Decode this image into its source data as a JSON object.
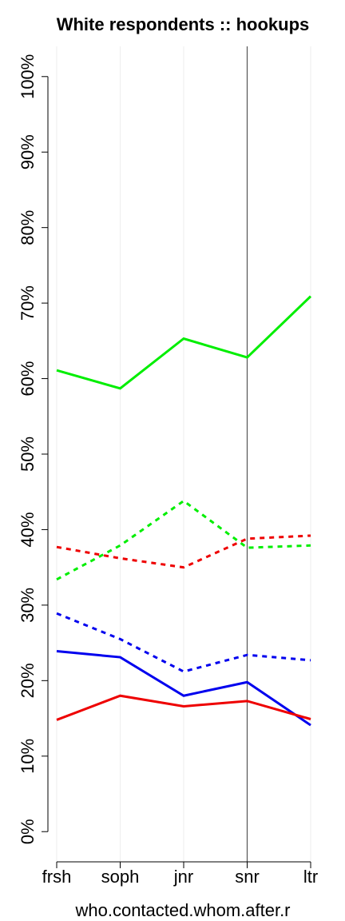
{
  "chart_data": {
    "type": "line",
    "title": "White respondents :: hookups",
    "x_label": "who.contacted.whom.after.r",
    "categories": [
      "frsh",
      "soph",
      "jnr",
      "snr",
      "ltr"
    ],
    "series": [
      {
        "color": "#00ee00",
        "dashed": false,
        "values": [
          61.1,
          58.7,
          65.3,
          62.8,
          70.9
        ]
      },
      {
        "color": "#00ee00",
        "dashed": true,
        "values": [
          33.4,
          37.9,
          43.8,
          37.6,
          37.9
        ]
      },
      {
        "color": "#ee0000",
        "dashed": true,
        "values": [
          37.7,
          36.2,
          35.0,
          38.8,
          39.2
        ]
      },
      {
        "color": "#0000ee",
        "dashed": true,
        "values": [
          28.9,
          25.5,
          21.2,
          23.4,
          22.7
        ]
      },
      {
        "color": "#0000ee",
        "dashed": false,
        "values": [
          23.9,
          23.1,
          18.0,
          19.8,
          14.1
        ]
      },
      {
        "color": "#ee0000",
        "dashed": false,
        "values": [
          14.8,
          18.0,
          16.6,
          17.3,
          14.9
        ]
      }
    ],
    "ylim": [
      -4,
      104
    ],
    "yticks": [
      {
        "value": 0,
        "label": "0%"
      },
      {
        "value": 10,
        "label": "10%"
      },
      {
        "value": 20,
        "label": "20%"
      },
      {
        "value": 30,
        "label": "30%"
      },
      {
        "value": 40,
        "label": "40%"
      },
      {
        "value": 50,
        "label": "50%"
      },
      {
        "value": 60,
        "label": "60%"
      },
      {
        "value": 70,
        "label": "70%"
      },
      {
        "value": 80,
        "label": "80%"
      },
      {
        "value": 90,
        "label": "90%"
      },
      {
        "value": 100,
        "label": "100%"
      }
    ],
    "xgrid": true,
    "vline": 3
  }
}
